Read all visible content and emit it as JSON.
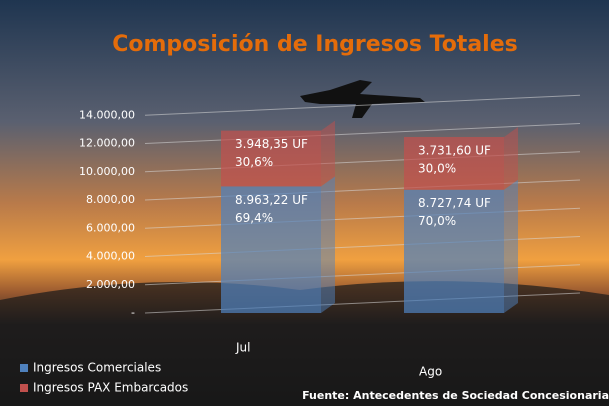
{
  "chart_data": {
    "type": "bar",
    "stacked": true,
    "title": "Composición de Ingresos Totales",
    "categories": [
      "Jul",
      "Ago"
    ],
    "series": [
      {
        "name": "Ingresos Comerciales",
        "color": "#4f81bd",
        "values": [
          8963.22,
          8727.74
        ],
        "value_labels": [
          "8.963,22 UF",
          "8.727,74 UF"
        ],
        "shares": [
          69.4,
          70.0
        ],
        "share_labels": [
          "69,4%",
          "70,0%"
        ]
      },
      {
        "name": "Ingresos PAX Embarcados",
        "color": "#c0504d",
        "values": [
          3948.35,
          3731.6
        ],
        "value_labels": [
          "3.948,35 UF",
          "3.731,60 UF"
        ],
        "shares": [
          30.6,
          30.0
        ],
        "share_labels": [
          "30,6%",
          "30,0%"
        ]
      }
    ],
    "ylim": [
      0,
      16000
    ],
    "yticks": [
      {
        "value": 0,
        "label": "-"
      },
      {
        "value": 2000,
        "label": "2.000,00"
      },
      {
        "value": 4000,
        "label": "4.000,00"
      },
      {
        "value": 6000,
        "label": "6.000,00"
      },
      {
        "value": 8000,
        "label": "8.000,00"
      },
      {
        "value": 10000,
        "label": "10.000,00"
      },
      {
        "value": 12000,
        "label": "12.000,00"
      },
      {
        "value": 14000,
        "label": "14.000,00"
      }
    ],
    "grid": true,
    "legend": "bottom-left",
    "source": "Fuente: Antecedentes de Sociedad Concesionaria"
  }
}
